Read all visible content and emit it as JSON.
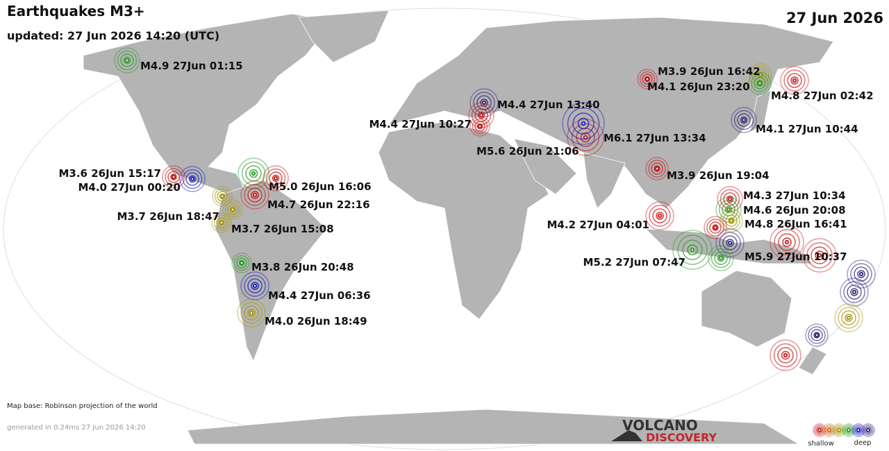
{
  "header": {
    "title": "Earthquakes M3+",
    "updated": "updated: 27 Jun 2026 14:20 (UTC)",
    "date": "27 Jun 2026"
  },
  "quakes": [
    {
      "label": "M4.9 27Jun 01:15"
    },
    {
      "label": "M3.6 26Jun 15:17"
    },
    {
      "label": "M4.0 27Jun 00:20"
    },
    {
      "label": "M5.0 26Jun 16:06"
    },
    {
      "label": "M4.7 26Jun 22:16"
    },
    {
      "label": "M3.7 26Jun 18:47"
    },
    {
      "label": "M3.7 26Jun 15:08"
    },
    {
      "label": "M3.8 26Jun 20:48"
    },
    {
      "label": "M4.4 27Jun 06:36"
    },
    {
      "label": "M4.0 26Jun 18:49"
    },
    {
      "label": "M4.4 27Jun 13:40"
    },
    {
      "label": "M4.4 27Jun 10:27"
    },
    {
      "label": "M5.6 26Jun 21:06"
    },
    {
      "label": "M6.1 27Jun 13:34"
    },
    {
      "label": "M3.9 26Jun 19:04"
    },
    {
      "label": "M3.9 26Jun 16:42"
    },
    {
      "label": "M4.1 26Jun 23:20"
    },
    {
      "label": "M4.8 27Jun 02:42"
    },
    {
      "label": "M4.1 27Jun 10:44"
    },
    {
      "label": "M4.3 27Jun 10:34"
    },
    {
      "label": "M4.6 26Jun 20:08"
    },
    {
      "label": "M4.8 26Jun 16:41"
    },
    {
      "label": "M4.2 27Jun 04:01"
    },
    {
      "label": "M5.2 27Jun 07:47"
    },
    {
      "label": "M5.9 27Jun 10:37"
    }
  ],
  "footer": {
    "map_base": "Map base: Robinson projection of the world",
    "generated": "generated in 0.24ms 27 Jun 2026 14:20"
  },
  "logo": {
    "line1": "VOLCANO",
    "line2": "DISCOVERY"
  },
  "legend": {
    "shallow": "shallow",
    "deep": "deep"
  }
}
